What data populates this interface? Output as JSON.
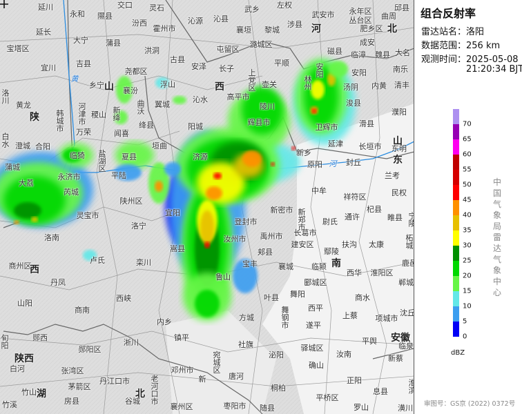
{
  "panel": {
    "title": "组合反射率",
    "station_label": "雷达站名：",
    "station": "洛阳",
    "range_label": "数据范围：",
    "range": "256 km",
    "time_label": "观测时间：",
    "date": "2025-05-08",
    "time": "21:20:34 BJT",
    "unit": "dBZ",
    "agency": "中国气象局雷达气象中心",
    "review_no": "审图号：GS京 (2022) 0372号"
  },
  "legend": {
    "ticks": [
      "0",
      "5",
      "10",
      "15",
      "20",
      "25",
      "30",
      "35",
      "40",
      "45",
      "50",
      "55",
      "60",
      "65",
      "70"
    ],
    "colors": [
      "#0000f6",
      "#3c9ef0",
      "#63e8e8",
      "#66f646",
      "#00d800",
      "#009000",
      "#ffff00",
      "#e7c000",
      "#ff9000",
      "#ff0000",
      "#d60000",
      "#c00000",
      "#ff00f0",
      "#9600b4",
      "#ad90f0"
    ]
  },
  "map": {
    "provinces": [
      "山",
      "陕",
      "西",
      "河",
      "北",
      "山",
      "东",
      "西",
      "南",
      "陕西",
      "湖",
      "北",
      "安徽"
    ],
    "river_labels": [
      "黄",
      "河"
    ],
    "places": [
      "延川",
      "永和",
      "隰县",
      "交口",
      "灵石",
      "汾西",
      "霍州市",
      "沁源",
      "延长",
      "大宁",
      "蒲县",
      "宝塔区",
      "洪洞",
      "古县",
      "安泽",
      "宜川",
      "吉县",
      "尧都区",
      "乡宁",
      "浮山",
      "洛川",
      "黄龙",
      "襄汾",
      "翼城",
      "沁水",
      "韩城市",
      "河津市",
      "稷山",
      "新绛",
      "曲沃",
      "万荣",
      "绛县",
      "白水",
      "澄城",
      "合阳",
      "闻喜",
      "垣曲",
      "阳城",
      "临猗",
      "盐湖区",
      "夏县",
      "蒲城",
      "永济市",
      "平陆",
      "大荔",
      "芮城",
      "陕州区",
      "济源",
      "武乡",
      "左权",
      "沁县",
      "武安市",
      "永年区",
      "邱县",
      "丛台区",
      "曲周",
      "襄垣",
      "黎城",
      "涉县",
      "肥乡区",
      "成安",
      "屯留区",
      "潞城区",
      "磁县",
      "临漳",
      "魏县",
      "大名",
      "平顺",
      "长子",
      "上党区",
      "林州",
      "安阳",
      "安阳",
      "南乐",
      "壶关",
      "汤阴",
      "内黄",
      "清丰",
      "高平市",
      "浚县",
      "濮阳",
      "陵川",
      "辉县市",
      "卫辉市",
      "滑县",
      "延津",
      "长垣市",
      "东明",
      "原阳",
      "封丘",
      "新乡",
      "兰考",
      "中牟",
      "祥符区",
      "民权",
      "灵宝市",
      "洛宁",
      "宜阳",
      "洛南",
      "嵩县",
      "卢氏",
      "栾川",
      "商州区",
      "丹凤",
      "山阳",
      "西峡",
      "商南",
      "内乡",
      "镇平",
      "旬阳",
      "郧西",
      "淅川",
      "郧阳区",
      "白河",
      "张湾区",
      "邓州市",
      "新",
      "丹江口市",
      "茅箭区",
      "竹山",
      "老河口市",
      "谷城",
      "房县",
      "竹溪",
      "襄州区",
      "新密市",
      "新郑市",
      "尉氏",
      "通许",
      "杞县",
      "睢县",
      "宁陵",
      "登封市",
      "长葛市",
      "禹州市",
      "建安区",
      "扶沟",
      "太康",
      "柘城",
      "鄢陵",
      "郏县",
      "宝丰",
      "襄城",
      "临颍",
      "西华",
      "淮阳区",
      "鹿邑",
      "郾城区",
      "郸城",
      "鲁山",
      "叶县",
      "舞阳",
      "商水",
      "西平",
      "舞钢市",
      "方城",
      "上蔡",
      "项城市",
      "沈丘",
      "遂平",
      "平舆",
      "临泉",
      "社旗",
      "驿城区",
      "泌阳",
      "汝南",
      "新蔡",
      "确山",
      "宛城区",
      "唐河",
      "正阳",
      "桐柏",
      "息县",
      "淮滨",
      "平桥区",
      "枣阳市",
      "随县",
      "罗山",
      "潢川",
      "汝州市"
    ]
  }
}
